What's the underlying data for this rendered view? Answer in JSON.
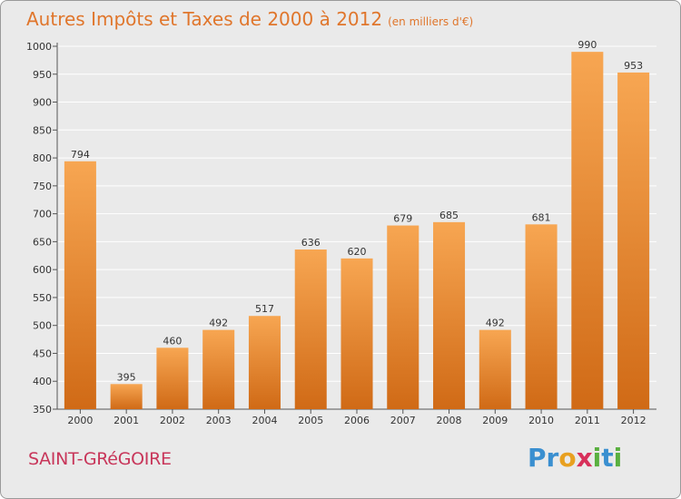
{
  "title": "Autres Impôts et Taxes de 2000 à 2012",
  "title_unit": "(en milliers d'€)",
  "commune": "SAINT-GRéGOIRE",
  "logo": {
    "text": "Proxiti",
    "letters": [
      {
        "ch": "P",
        "color": "#3a8fd0"
      },
      {
        "ch": "r",
        "color": "#3a8fd0"
      },
      {
        "ch": "o",
        "color": "#e8a020"
      },
      {
        "ch": "x",
        "color": "#d8305a"
      },
      {
        "ch": "i",
        "color": "#5ab040"
      },
      {
        "ch": "t",
        "color": "#3a8fd0"
      },
      {
        "ch": "i",
        "color": "#5ab040"
      }
    ]
  },
  "colors": {
    "bar_top": "#f7a652",
    "bar_bottom": "#d06a16",
    "title": "#e0762c",
    "commune": "#c8365a",
    "grid": "#ffffff",
    "background": "#eaeaea"
  },
  "chart_data": {
    "type": "bar",
    "categories": [
      "2000",
      "2001",
      "2002",
      "2003",
      "2004",
      "2005",
      "2006",
      "2007",
      "2008",
      "2009",
      "2010",
      "2011",
      "2012"
    ],
    "values": [
      794,
      395,
      460,
      492,
      517,
      636,
      620,
      679,
      685,
      492,
      681,
      990,
      953
    ],
    "title": "Autres Impôts et Taxes de 2000 à 2012",
    "subtitle": "(en milliers d'€)",
    "xlabel": "",
    "ylabel": "",
    "ylim": [
      350,
      1000
    ],
    "yticks": [
      350,
      400,
      450,
      500,
      550,
      600,
      650,
      700,
      750,
      800,
      850,
      900,
      950,
      1000
    ],
    "grid": true,
    "data_labels": true
  }
}
